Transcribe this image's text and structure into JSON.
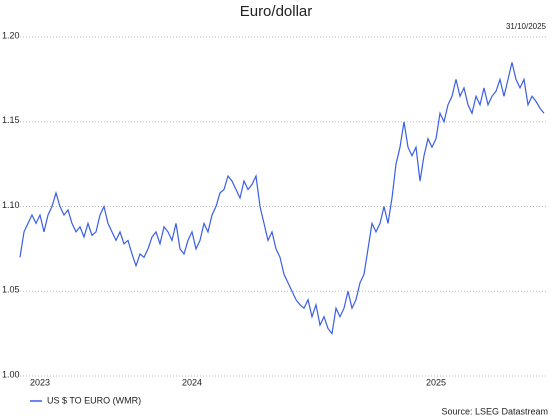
{
  "chart_data": {
    "type": "line",
    "title": "Euro/dollar",
    "annotation": "31/10/2025",
    "source": "Source: LSEG Datastream",
    "categories": [
      null,
      null,
      null,
      null,
      null,
      "2023",
      null,
      null,
      null,
      null,
      null,
      null,
      null,
      null,
      null,
      null,
      null,
      null,
      null,
      null,
      null,
      null,
      null,
      null,
      null,
      null,
      null,
      null,
      null,
      null,
      null,
      null,
      null,
      null,
      null,
      null,
      null,
      null,
      null,
      null,
      null,
      null,
      null,
      "2024",
      null,
      null,
      null,
      null,
      null,
      null,
      null,
      null,
      null,
      null,
      null,
      null,
      null,
      null,
      null,
      null,
      null,
      null,
      null,
      null,
      null,
      null,
      null,
      null,
      null,
      null,
      null,
      null,
      null,
      null,
      null,
      null,
      null,
      null,
      null,
      null,
      null,
      null,
      null,
      null,
      null,
      null,
      null,
      null,
      null,
      null,
      null,
      null,
      null,
      null,
      null,
      null,
      null,
      null,
      null,
      null,
      null,
      null,
      null,
      null,
      "2025",
      null,
      null,
      null,
      null,
      null,
      null,
      null,
      null,
      null,
      null,
      null,
      null,
      null,
      null,
      null,
      null,
      null,
      null,
      null,
      null,
      null,
      null,
      null,
      null,
      null,
      null,
      null
    ],
    "series": [
      {
        "name": "US $ TO EURO (WMR)",
        "color": "#3a5ee6",
        "values": [
          1.07,
          1.085,
          1.09,
          1.095,
          1.09,
          1.095,
          1.085,
          1.095,
          1.1,
          1.108,
          1.1,
          1.095,
          1.098,
          1.09,
          1.085,
          1.088,
          1.082,
          1.09,
          1.083,
          1.085,
          1.095,
          1.1,
          1.09,
          1.085,
          1.08,
          1.085,
          1.078,
          1.08,
          1.072,
          1.065,
          1.072,
          1.07,
          1.075,
          1.082,
          1.085,
          1.078,
          1.088,
          1.085,
          1.08,
          1.09,
          1.075,
          1.072,
          1.08,
          1.085,
          1.075,
          1.08,
          1.09,
          1.085,
          1.095,
          1.1,
          1.108,
          1.11,
          1.118,
          1.115,
          1.11,
          1.105,
          1.115,
          1.11,
          1.113,
          1.118,
          1.1,
          1.09,
          1.08,
          1.085,
          1.075,
          1.07,
          1.06,
          1.055,
          1.05,
          1.045,
          1.042,
          1.04,
          1.045,
          1.035,
          1.042,
          1.03,
          1.035,
          1.028,
          1.025,
          1.04,
          1.035,
          1.04,
          1.05,
          1.04,
          1.045,
          1.055,
          1.06,
          1.075,
          1.09,
          1.085,
          1.09,
          1.1,
          1.09,
          1.105,
          1.125,
          1.135,
          1.15,
          1.135,
          1.13,
          1.135,
          1.115,
          1.13,
          1.14,
          1.135,
          1.14,
          1.155,
          1.15,
          1.16,
          1.165,
          1.175,
          1.165,
          1.17,
          1.16,
          1.155,
          1.165,
          1.16,
          1.17,
          1.16,
          1.165,
          1.168,
          1.175,
          1.165,
          1.175,
          1.185,
          1.175,
          1.17,
          1.175,
          1.16,
          1.165,
          1.162,
          1.158,
          1.155
        ]
      }
    ],
    "ylim": [
      1.0,
      1.2
    ],
    "yticks": [
      {
        "value": 1.0,
        "label": "1.00"
      },
      1.05,
      {
        "value": 1.1,
        "label": "1.10"
      },
      1.15,
      {
        "value": 1.2,
        "label": "1.20"
      }
    ],
    "grid": true
  }
}
